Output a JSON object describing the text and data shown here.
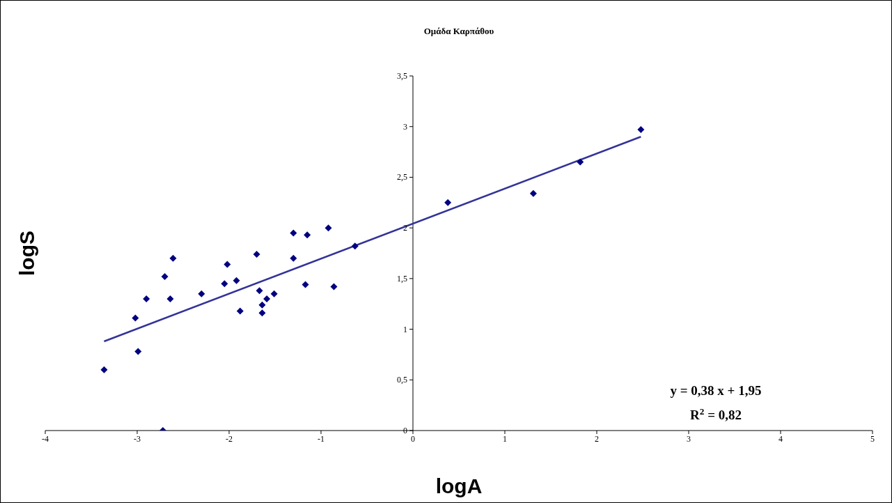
{
  "chart_data": {
    "type": "scatter",
    "title": "Ομάδα Καρπάθου",
    "xlabel": "logA",
    "ylabel": "logS",
    "xlim": [
      -4,
      5
    ],
    "xticks": [
      -4,
      -3,
      -2,
      -1,
      0,
      1,
      2,
      3,
      4,
      5
    ],
    "ylim": [
      0,
      3.5
    ],
    "yticks": [
      0,
      {
        "value": 0.5,
        "label": "0,5"
      },
      1,
      {
        "value": 1.5,
        "label": "1,5"
      },
      2,
      {
        "value": 2.5,
        "label": "2,5"
      },
      3,
      {
        "value": 3.5,
        "label": "3,5"
      }
    ],
    "marker": "diamond",
    "series": [
      {
        "color": "#000080",
        "x": [
          -3.36,
          -3.02,
          -2.99,
          -2.9,
          -2.72,
          -2.7,
          -2.64,
          -2.61,
          -2.3,
          -2.05,
          -2.02,
          -1.92,
          -1.88,
          -1.7,
          -1.67,
          -1.64,
          -1.64,
          -1.59,
          -1.51,
          -1.3,
          -1.3,
          -1.17,
          -1.15,
          -0.92,
          -0.86,
          -0.63,
          0.38,
          1.31,
          1.82,
          2.48
        ],
        "values": [
          0.6,
          1.11,
          0.78,
          1.3,
          0,
          1.52,
          1.3,
          1.7,
          1.35,
          1.45,
          1.64,
          1.48,
          1.18,
          1.74,
          1.38,
          1.24,
          1.16,
          1.3,
          1.35,
          1.7,
          1.95,
          1.44,
          1.93,
          2.0,
          1.42,
          1.82,
          2.25,
          2.34,
          2.65,
          2.97
        ]
      },
      {
        "type": "line",
        "color": "#333399",
        "marker": "none",
        "x": [
          -3.36,
          2.48
        ],
        "values": [
          0.88,
          2.9
        ]
      }
    ],
    "annotations": [
      "y = 0,38 x + 1,95",
      "R$^{2}$ = 0,82"
    ]
  }
}
